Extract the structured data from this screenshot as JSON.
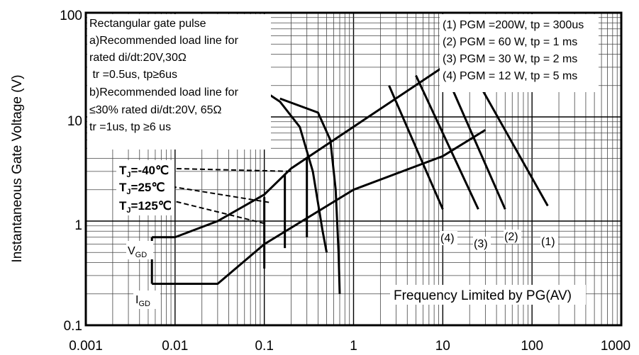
{
  "chart_data": {
    "type": "line",
    "xscale": "log",
    "yscale": "log",
    "xlim": [
      0.001,
      1000
    ],
    "ylim": [
      0.1,
      100
    ],
    "ylabel": "Instantaneous Gate Voltage (V)",
    "xlabel": "",
    "x_ticks": [
      "0.001",
      "0.01",
      "0.1",
      "1",
      "10",
      "100",
      "1000"
    ],
    "y_ticks": [
      "0.1",
      "1",
      "10",
      "100"
    ],
    "grid": true,
    "note_lines": [
      "Rectangular gate pulse",
      "a)Recommended load line for",
      "rated di/dt:20V,30Ω",
      " tr =0.5us, tp≥6us",
      "b)Recommended load line for",
      "≤30% rated di/dt:20V, 65Ω",
      "tr =1us, tp ≥6 us"
    ],
    "legend": [
      "(1) PGM =200W, tp = 300us",
      "(2) PGM = 60 W, tp = 1 ms",
      "(3) PGM = 30 W, tp = 2 ms",
      "(4) PGM = 12 W, tp = 5 ms"
    ],
    "power_labels": [
      "(4)",
      "(3)",
      "(2)",
      "(1)"
    ],
    "tj_labels": [
      {
        "prefix": "T",
        "sub": "J",
        "suffix": "=-40℃"
      },
      {
        "prefix": "T",
        "sub": "J",
        "suffix": "=25℃"
      },
      {
        "prefix": "T",
        "sub": "J",
        "suffix": "=125℃"
      }
    ],
    "vgd_label": {
      "main": "V",
      "sub": "GD"
    },
    "igd_label": {
      "main": "I",
      "sub": "GD"
    },
    "freq_label": "Frequency Limited by PG(AV)",
    "load_line_a": [
      [
        0.0055,
        0.7
      ],
      [
        0.01,
        0.7
      ],
      [
        0.03,
        1.0
      ],
      [
        0.1,
        1.8
      ],
      [
        0.2,
        3.2
      ],
      [
        10,
        30
      ],
      [
        100,
        60
      ]
    ],
    "load_line_b": [
      [
        0.0055,
        0.25
      ],
      [
        0.03,
        0.25
      ],
      [
        0.1,
        0.6
      ],
      [
        1,
        2.0
      ],
      [
        10,
        4.2
      ],
      [
        30,
        7.5
      ]
    ],
    "gd_region": [
      [
        0.0055,
        0.7
      ],
      [
        0.0055,
        0.25
      ]
    ],
    "tj_curves": [
      {
        "name": "-40",
        "points": [
          [
            0.08,
            20
          ],
          [
            0.15,
            14
          ],
          [
            0.25,
            8
          ],
          [
            0.35,
            3
          ],
          [
            0.45,
            0.8
          ],
          [
            0.5,
            0.5
          ]
        ]
      },
      {
        "name": "125",
        "points": [
          [
            0.15,
            15
          ],
          [
            0.4,
            11
          ],
          [
            0.55,
            6
          ],
          [
            0.63,
            2
          ],
          [
            0.68,
            0.5
          ],
          [
            0.7,
            0.2
          ]
        ]
      }
    ],
    "tj_verticals": [
      {
        "x": 0.1,
        "y": [
          0.35,
          1.7
        ]
      },
      {
        "x": 0.17,
        "y": [
          0.55,
          2.8
        ]
      },
      {
        "x": 0.3,
        "y": [
          0.7,
          4.1
        ]
      }
    ],
    "tj_leaders": [
      {
        "from": [
          0.0085,
          3.2
        ],
        "to": [
          0.2,
          3.0
        ]
      },
      {
        "from": [
          0.0075,
          2.2
        ],
        "to": [
          0.12,
          1.5
        ]
      },
      {
        "from": [
          0.0085,
          1.6
        ],
        "to": [
          0.1,
          0.95
        ]
      }
    ],
    "pgm_lines": [
      {
        "name": "(4)",
        "from": [
          2.5,
          20
        ],
        "to": [
          10,
          1.3
        ]
      },
      {
        "name": "(3)",
        "from": [
          5,
          25
        ],
        "to": [
          25,
          1.3
        ]
      },
      {
        "name": "(2)",
        "from": [
          10,
          30
        ],
        "to": [
          50,
          1.3
        ]
      },
      {
        "name": "(1)",
        "from": [
          20,
          30
        ],
        "to": [
          150,
          1.4
        ]
      }
    ]
  }
}
